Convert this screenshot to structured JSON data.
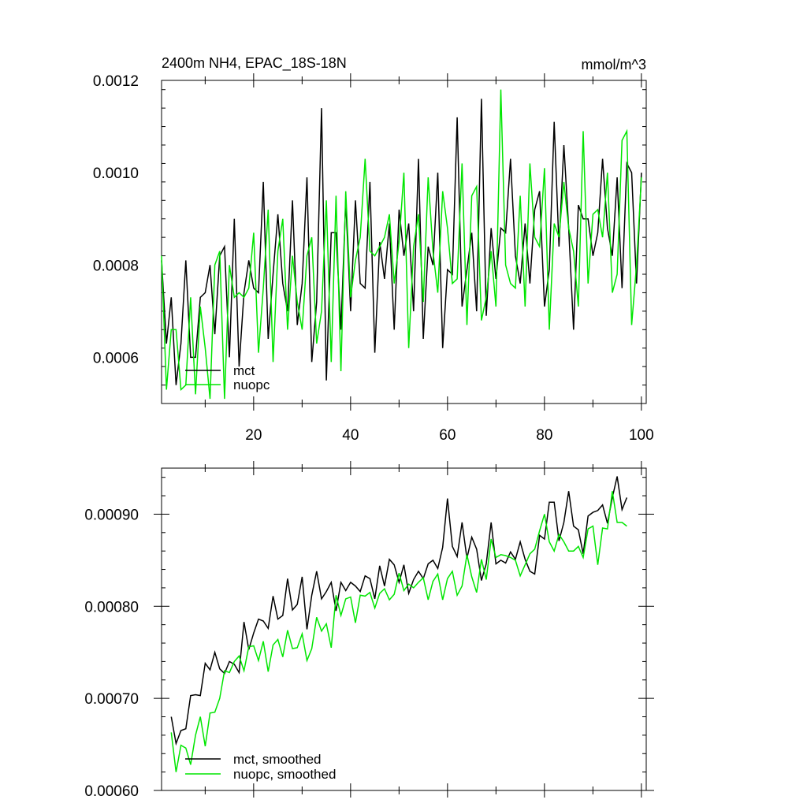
{
  "chart_data": [
    {
      "type": "line",
      "title": "2400m NH4, EPAC_18S-18N",
      "units": "mmol/m^3",
      "xlim": [
        1,
        101
      ],
      "ylim": [
        0.0005,
        0.0012
      ],
      "x_ticks": [
        20,
        40,
        60,
        80,
        100
      ],
      "x_tick_labels": [
        "20",
        "40",
        "60",
        "80",
        "100"
      ],
      "y_ticks": [
        0.0006,
        0.0008,
        0.001,
        0.0012
      ],
      "y_tick_labels": [
        "0.0006",
        "0.0008",
        "0.0010",
        "0.0012"
      ],
      "legend_position": "bottom-left",
      "series": [
        {
          "name": "mct",
          "color": "#000000",
          "values": [
            0.00081,
            0.00063,
            0.00073,
            0.00054,
            0.00063,
            0.00081,
            0.0006,
            0.0006,
            0.00073,
            0.00074,
            0.0008,
            0.00065,
            0.00082,
            0.00084,
            0.0006,
            0.0009,
            0.00058,
            0.00074,
            0.00081,
            0.00075,
            0.00074,
            0.00098,
            0.00064,
            0.00078,
            0.00091,
            0.00076,
            0.0007,
            0.00094,
            0.00067,
            0.00076,
            0.00099,
            0.00059,
            0.00072,
            0.00114,
            0.00055,
            0.00087,
            0.00087,
            0.00066,
            0.00094,
            0.0007,
            0.00094,
            0.00076,
            0.00075,
            0.00098,
            0.00061,
            0.00085,
            0.00077,
            0.00089,
            0.00066,
            0.00092,
            0.00082,
            0.00089,
            0.0007,
            0.00103,
            0.00064,
            0.00084,
            0.0008,
            0.001,
            0.00062,
            0.00079,
            0.00078,
            0.00112,
            0.00071,
            0.00079,
            0.00087,
            0.0007,
            0.00116,
            0.00069,
            0.00088,
            0.00077,
            0.00088,
            0.00087,
            0.00103,
            0.00082,
            0.00076,
            0.00089,
            0.00076,
            0.00092,
            0.00096,
            0.00071,
            0.00079,
            0.00111,
            0.00084,
            0.00106,
            0.00088,
            0.00066,
            0.00093,
            0.0009,
            0.0009,
            0.00082,
            0.00087,
            0.00103,
            0.00088,
            0.00082,
            0.00099,
            0.00075,
            0.00102,
            0.001,
            0.00076,
            0.001
          ]
        },
        {
          "name": "nuopc",
          "color": "#00e600",
          "values": [
            0.00082,
            0.00053,
            0.00066,
            0.00066,
            0.00053,
            0.00054,
            0.00073,
            0.00052,
            0.00071,
            0.00062,
            0.00051,
            0.0008,
            0.00083,
            0.00051,
            0.0008,
            0.00073,
            0.00074,
            0.00073,
            0.00075,
            0.00087,
            0.00061,
            0.00075,
            0.00092,
            0.00059,
            0.00083,
            0.0009,
            0.00066,
            0.00082,
            0.00072,
            0.00066,
            0.00082,
            0.00086,
            0.00063,
            0.0007,
            0.00094,
            0.00059,
            0.00095,
            0.00057,
            0.00096,
            0.00073,
            0.00081,
            0.00086,
            0.00103,
            0.00083,
            0.00082,
            0.00084,
            0.00086,
            0.00091,
            0.00076,
            0.00085,
            0.001,
            0.00062,
            0.00084,
            0.00091,
            0.00072,
            0.00099,
            0.00083,
            0.00074,
            0.00096,
            0.00088,
            0.00076,
            0.00077,
            0.00102,
            0.00067,
            0.00095,
            0.00097,
            0.00068,
            0.00073,
            0.00083,
            0.00071,
            0.00118,
            0.0008,
            0.00076,
            0.00075,
            0.00095,
            0.00071,
            0.00102,
            0.00086,
            0.00084,
            0.00101,
            0.00066,
            0.00089,
            0.00086,
            0.00098,
            0.00088,
            0.00083,
            0.00071,
            0.00109,
            0.00076,
            0.00091,
            0.00092,
            0.00086,
            0.001,
            0.00074,
            0.00078,
            0.00107,
            0.00109,
            0.00067,
            0.0008,
            0.00099
          ]
        }
      ]
    },
    {
      "type": "line",
      "title": "",
      "xlim": [
        1,
        101
      ],
      "ylim": [
        0.0006,
        0.00095
      ],
      "x_ticks": [
        20,
        40,
        60,
        80,
        100
      ],
      "y_ticks": [
        0.0006,
        0.0007,
        0.0008,
        0.0009
      ],
      "y_tick_labels": [
        "0.00060",
        "0.00070",
        "0.00080",
        "0.00090"
      ],
      "legend_position": "bottom-left",
      "series": [
        {
          "name": "mct, smoothed",
          "color": "#000000",
          "values": [
            null,
            null,
            0.00068,
            0.000651,
            0.000665,
            0.000667,
            0.000703,
            0.000704,
            0.000703,
            0.000738,
            0.000731,
            0.00075,
            0.000732,
            0.000727,
            0.00074,
            0.000737,
            0.000728,
            0.000783,
            0.000753,
            0.000771,
            0.000786,
            0.000784,
            0.000776,
            0.000811,
            0.000786,
            0.00079,
            0.00083,
            0.000796,
            0.000802,
            0.000832,
            0.000775,
            0.000812,
            0.000838,
            0.000808,
            0.000816,
            0.000826,
            0.000795,
            0.000826,
            0.000817,
            0.000826,
            0.000822,
            0.000816,
            0.000833,
            0.00083,
            0.000808,
            0.000844,
            0.000822,
            0.000851,
            0.000845,
            0.000826,
            0.000845,
            0.000814,
            0.000829,
            0.000838,
            0.00083,
            0.000846,
            0.00085,
            0.000841,
            0.000864,
            0.000917,
            0.000865,
            0.000854,
            0.000891,
            0.000852,
            0.000875,
            0.000862,
            0.000828,
            0.000846,
            0.000891,
            0.000846,
            0.00085,
            0.000847,
            0.000859,
            0.000851,
            0.00087,
            0.000851,
            0.000838,
            0.000835,
            0.000877,
            0.000873,
            0.000913,
            0.000913,
            0.000871,
            0.000891,
            0.000925,
            0.000887,
            0.000883,
            0.000857,
            0.000898,
            0.000902,
            0.000904,
            0.00091,
            0.00089,
            0.000918,
            0.000941,
            0.000905,
            0.000918,
            null,
            null,
            null
          ]
        },
        {
          "name": "nuopc, smoothed",
          "color": "#00e600",
          "values": [
            null,
            null,
            0.000663,
            0.00062,
            0.000649,
            0.000646,
            0.000628,
            0.00066,
            0.00068,
            0.000648,
            0.000684,
            0.000685,
            0.0007,
            0.00073,
            0.000728,
            0.00074,
            0.000746,
            0.00073,
            0.000756,
            0.000757,
            0.000741,
            0.000762,
            0.000729,
            0.000758,
            0.000764,
            0.000745,
            0.000774,
            0.000754,
            0.000755,
            0.00077,
            0.000741,
            0.000754,
            0.000788,
            0.000773,
            0.000781,
            0.000755,
            0.000812,
            0.00079,
            0.000808,
            0.00081,
            0.000782,
            0.000812,
            0.000811,
            0.000815,
            0.000798,
            0.000814,
            0.000819,
            0.000807,
            0.000813,
            0.000836,
            0.000817,
            0.000824,
            0.00082,
            0.000826,
            0.000831,
            0.000807,
            0.000827,
            0.000835,
            0.000807,
            0.00083,
            0.000838,
            0.000812,
            0.000822,
            0.000856,
            0.000832,
            0.000815,
            0.000851,
            0.000829,
            0.000873,
            0.000853,
            0.000856,
            0.000855,
            0.000853,
            0.00085,
            0.000833,
            0.000845,
            0.000857,
            0.000862,
            0.000882,
            0.0009,
            0.00087,
            0.00086,
            0.000878,
            0.00087,
            0.00086,
            0.00086,
            0.000865,
            0.000853,
            0.000884,
            0.000887,
            0.000845,
            0.000885,
            0.000884,
            0.000925,
            0.000891,
            0.000891,
            0.000887,
            null,
            null,
            null
          ]
        }
      ]
    }
  ]
}
